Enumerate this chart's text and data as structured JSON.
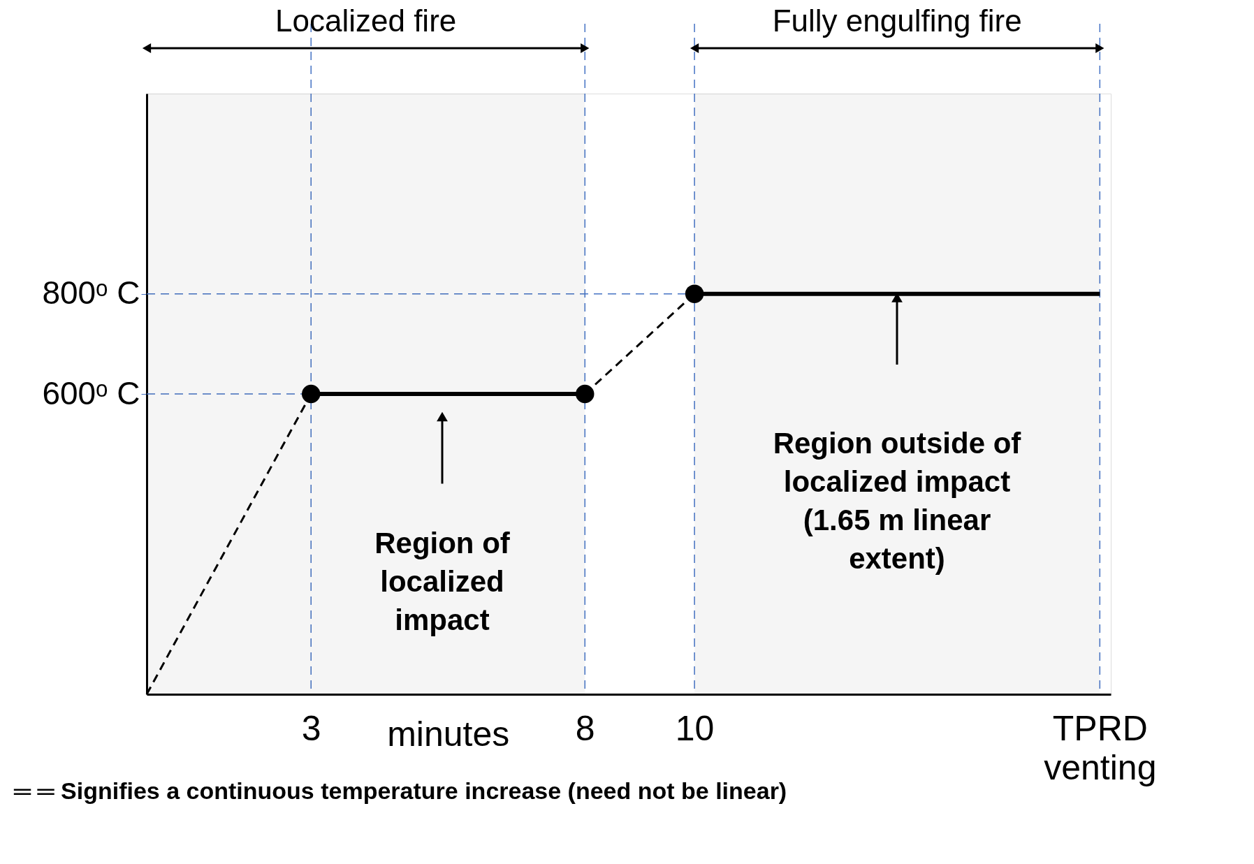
{
  "chart_data": {
    "type": "line",
    "xlabel": "minutes",
    "xlim": [
      0,
      17.6
    ],
    "ylim": [
      0,
      1200
    ],
    "xticks": [
      3,
      8,
      10,
      {
        "value": 17.4,
        "label": "TPRD venting"
      }
    ],
    "yticks": [
      {
        "value": 600,
        "label": "600ᵒ C"
      },
      {
        "value": 800,
        "label": "800ᵒ C"
      }
    ],
    "grid": false,
    "series": [
      {
        "x": [
          0,
          3
        ],
        "values": [
          0,
          600
        ],
        "color": "#000000",
        "line_style": "dashed",
        "marker": "none"
      },
      {
        "x": [
          3,
          8
        ],
        "values": [
          600,
          600
        ],
        "color": "#000000",
        "line_style": "solid",
        "marker": "none"
      },
      {
        "x": [
          8,
          10
        ],
        "values": [
          600,
          800
        ],
        "color": "#000000",
        "line_style": "dashed",
        "marker": "none"
      },
      {
        "x": [
          10,
          17.4
        ],
        "values": [
          800,
          800
        ],
        "color": "#000000",
        "line_style": "solid",
        "marker": "none"
      },
      {
        "type": "scatter",
        "x": [
          3,
          8,
          10
        ],
        "values": [
          600,
          600,
          800
        ],
        "color": "#000000",
        "marker": "circle"
      }
    ],
    "ref_lines": [
      {
        "axis": "x",
        "value": 3,
        "color": "#4472c4",
        "line_style": "dashed"
      },
      {
        "axis": "x",
        "value": 8,
        "color": "#4472c4",
        "line_style": "dashed"
      },
      {
        "axis": "x",
        "value": 10,
        "color": "#4472c4",
        "line_style": "dashed"
      },
      {
        "axis": "x",
        "value": 17.4,
        "color": "#4472c4",
        "line_style": "dashed"
      },
      {
        "axis": "y",
        "value": 600,
        "color": "#4472c4",
        "line_style": "dashed"
      },
      {
        "axis": "y",
        "value": 800,
        "color": "#4472c4",
        "line_style": "dashed"
      }
    ],
    "bands": [
      {
        "axis": "x",
        "from": 0,
        "to": 8,
        "label": "Localized fire",
        "color": "#000000"
      },
      {
        "axis": "x",
        "from": 10,
        "to": 17.4,
        "label": "Fully engulfing fire",
        "color": "#000000"
      }
    ],
    "annotations": [
      "Region of\nlocalized\nimpact",
      "Region outside of\nlocalized impact\n (1.65 m linear\nextent)",
      "═ ═ Signifies a continuous temperature increase (need not be linear)"
    ]
  }
}
